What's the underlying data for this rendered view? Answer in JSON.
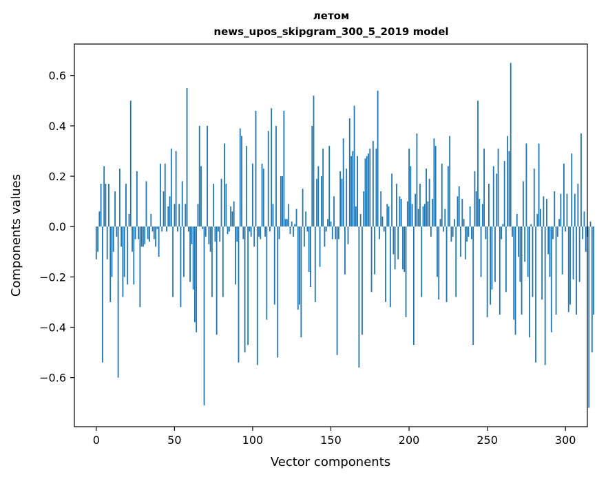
{
  "chart_data": {
    "type": "bar",
    "title": "летом",
    "subtitle": "news_upos_skipgram_300_5_2019 model",
    "xlabel": "Vector components",
    "ylabel": "Components values",
    "xlim": [
      -14,
      314
    ],
    "ylim": [
      -0.795,
      0.725
    ],
    "xticks": [
      0,
      50,
      100,
      150,
      200,
      250,
      300
    ],
    "xtick_labels": [
      "0",
      "50",
      "100",
      "150",
      "200",
      "250",
      "300"
    ],
    "yticks": [
      -0.6,
      -0.4,
      -0.2,
      0.0,
      0.2,
      0.4,
      0.6
    ],
    "ytick_labels": [
      "−0.6",
      "−0.4",
      "−0.2",
      "0.0",
      "0.2",
      "0.4",
      "0.6"
    ],
    "bar_color": "#1f77b4",
    "grid": false,
    "values": [
      -0.13,
      -0.1,
      0.06,
      0.17,
      -0.54,
      0.24,
      0.17,
      -0.13,
      0.17,
      -0.3,
      -0.2,
      -0.1,
      0.14,
      -0.04,
      -0.6,
      0.23,
      -0.08,
      -0.28,
      -0.2,
      0.17,
      -0.23,
      0.05,
      0.5,
      -0.1,
      -0.23,
      -0.05,
      0.22,
      -0.05,
      -0.32,
      -0.08,
      -0.08,
      -0.07,
      0.18,
      -0.05,
      -0.06,
      0.05,
      -0.02,
      -0.05,
      -0.08,
      -0.01,
      -0.12,
      0.25,
      -0.02,
      0.14,
      0.25,
      -0.02,
      0.08,
      0.12,
      0.31,
      -0.28,
      0.09,
      0.3,
      -0.02,
      0.09,
      -0.32,
      0.18,
      -0.2,
      0.09,
      0.55,
      -0.02,
      -0.22,
      -0.07,
      -0.25,
      -0.38,
      -0.42,
      0.09,
      0.4,
      0.24,
      -0.01,
      -0.71,
      -0.04,
      0.4,
      -0.07,
      -0.1,
      -0.28,
      0.17,
      -0.06,
      -0.43,
      -0.02,
      -0.06,
      0.19,
      -0.28,
      0.33,
      0.17,
      -0.03,
      -0.02,
      0.08,
      0.06,
      0.1,
      -0.23,
      -0.06,
      -0.54,
      0.39,
      0.36,
      -0.05,
      -0.5,
      0.32,
      -0.47,
      -0.02,
      -0.04,
      0.25,
      -0.08,
      0.46,
      -0.55,
      -0.04,
      -0.05,
      0.25,
      0.23,
      -0.04,
      -0.37,
      0.38,
      -0.02,
      0.47,
      0.09,
      -0.31,
      0.4,
      -0.52,
      -0.05,
      0.2,
      0.2,
      0.46,
      0.03,
      0.03,
      0.09,
      -0.03,
      0.02,
      -0.04,
      0.01,
      0.07,
      -0.33,
      -0.31,
      -0.44,
      0.15,
      -0.08,
      0.06,
      -0.02,
      -0.18,
      -0.24,
      0.4,
      0.52,
      -0.3,
      0.19,
      0.24,
      -0.16,
      0.2,
      0.31,
      -0.08,
      -0.02,
      0.03,
      0.32,
      0.02,
      -0.05,
      0.12,
      -0.05,
      -0.51,
      -0.05,
      0.22,
      0.19,
      0.35,
      -0.19,
      0.23,
      -0.07,
      0.43,
      0.28,
      0.3,
      0.48,
      0.08,
      0.28,
      -0.56,
      0.05,
      -0.43,
      0.14,
      0.27,
      0.28,
      0.29,
      0.31,
      -0.26,
      0.34,
      -0.19,
      0.31,
      0.54,
      -0.05,
      0.14,
      0.04,
      -0.02,
      -0.3,
      0.09,
      0.08,
      -0.32,
      0.21,
      -0.11,
      -0.17,
      0.17,
      -0.13,
      0.12,
      0.11,
      -0.17,
      -0.18,
      -0.36,
      0.1,
      0.31,
      0.24,
      0.09,
      -0.47,
      0.13,
      0.37,
      0.07,
      0.17,
      -0.28,
      0.08,
      0.09,
      0.23,
      0.1,
      0.19,
      -0.04,
      0.11,
      0.35,
      0.32,
      -0.2,
      -0.29,
      0.03,
      0.25,
      -0.02,
      0.07,
      -0.3,
      0.24,
      0.36,
      -0.06,
      -0.04,
      0.03,
      -0.28,
      0.12,
      0.16,
      -0.12,
      0.11,
      0.03,
      -0.13,
      -0.06,
      -0.04,
      0.08,
      -0.05,
      -0.47,
      0.22,
      0.14,
      0.5,
      0.11,
      -0.2,
      0.09,
      0.31,
      -0.05,
      -0.36,
      0.17,
      -0.31,
      -0.25,
      0.24,
      -0.22,
      0.21,
      0.31,
      -0.35,
      -0.05,
      0.01,
      0.26,
      -0.26,
      0.36,
      0.3,
      0.65,
      -0.04,
      -0.37,
      -0.43,
      0.05,
      -0.12,
      -0.22,
      -0.35,
      0.18,
      -0.14,
      0.33,
      -0.2,
      -0.44,
      0.01,
      -0.28,
      0.23,
      -0.54,
      0.05,
      0.33,
      0.07,
      -0.29,
      0.12,
      -0.55,
      0.11,
      -0.11,
      -0.2,
      -0.42,
      -0.05,
      0.14,
      -0.35,
      -0.04,
      0.03,
      0.13,
      -0.19,
      0.25,
      -0.02,
      0.13,
      -0.34,
      -0.31,
      0.29,
      -0.21,
      0.13,
      -0.35,
      0.17,
      -0.22,
      0.37,
      -0.05,
      0.06,
      -0.1,
      -0.04,
      -0.72,
      0.02,
      -0.5,
      -0.35
    ]
  }
}
